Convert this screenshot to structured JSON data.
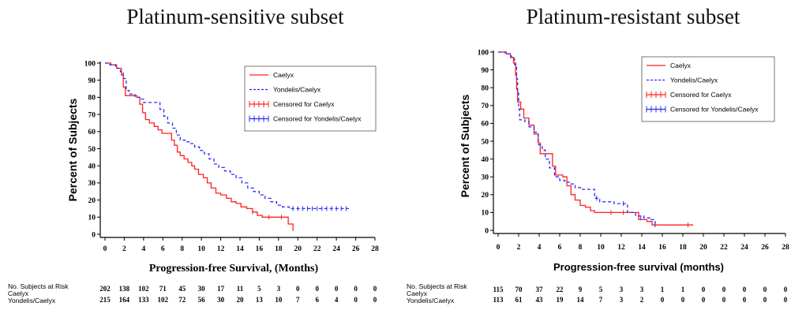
{
  "chart_data": [
    {
      "type": "line",
      "title": "Platinum-sensitive subset",
      "xlabel": "Progression-free Survival, (Months)",
      "ylabel": "Percent of Subjects",
      "xlim": [
        0,
        28
      ],
      "ylim": [
        0,
        100
      ],
      "xticks": [
        0,
        2,
        4,
        6,
        8,
        10,
        12,
        14,
        16,
        18,
        20,
        22,
        24,
        26,
        28
      ],
      "yticks": [
        0,
        10,
        20,
        30,
        40,
        50,
        60,
        70,
        80,
        90,
        100
      ],
      "legend": {
        "position": "top-right",
        "entries": [
          {
            "label": "Caelyx",
            "color": "#ff2020",
            "style": "solid"
          },
          {
            "label": "Yondelis/Caelyx",
            "color": "#2a2aff",
            "style": "dashed"
          },
          {
            "label": "Censored for Caelyx",
            "color": "#ff2020",
            "style": "censor"
          },
          {
            "label": "Censored for Yondelis/Caelyx",
            "color": "#2a2aff",
            "style": "censor"
          }
        ]
      },
      "series": [
        {
          "name": "Caelyx",
          "color": "#ff2020",
          "dash": "",
          "points": [
            [
              0,
              100
            ],
            [
              0.6,
              99
            ],
            [
              1.2,
              97
            ],
            [
              1.7,
              93
            ],
            [
              1.9,
              86
            ],
            [
              2.1,
              81
            ],
            [
              3.3,
              80
            ],
            [
              3.6,
              76
            ],
            [
              3.9,
              71
            ],
            [
              4.2,
              67
            ],
            [
              4.6,
              65
            ],
            [
              5.1,
              63
            ],
            [
              5.5,
              61
            ],
            [
              5.9,
              59
            ],
            [
              6.6,
              59
            ],
            [
              6.9,
              55
            ],
            [
              7.2,
              52
            ],
            [
              7.5,
              48
            ],
            [
              7.8,
              46
            ],
            [
              8.2,
              44
            ],
            [
              8.6,
              42
            ],
            [
              9,
              40
            ],
            [
              9.3,
              38
            ],
            [
              9.7,
              35
            ],
            [
              10.2,
              33
            ],
            [
              10.6,
              30
            ],
            [
              11,
              27
            ],
            [
              11.5,
              24
            ],
            [
              12,
              23
            ],
            [
              12.6,
              21
            ],
            [
              13.1,
              19
            ],
            [
              13.6,
              18
            ],
            [
              14.1,
              16
            ],
            [
              14.7,
              15
            ],
            [
              15.3,
              13
            ],
            [
              15.8,
              11
            ],
            [
              16.3,
              10
            ],
            [
              18.9,
              10
            ],
            [
              19,
              6
            ],
            [
              19.4,
              6
            ],
            [
              19.5,
              2
            ]
          ]
        },
        {
          "name": "Yondelis/Caelyx",
          "color": "#2a2aff",
          "dash": "4,3",
          "points": [
            [
              0,
              100
            ],
            [
              0.5,
              99
            ],
            [
              1.1,
              97
            ],
            [
              1.6,
              95
            ],
            [
              1.9,
              91
            ],
            [
              2.2,
              84
            ],
            [
              2.5,
              82
            ],
            [
              3.1,
              80
            ],
            [
              3.6,
              79
            ],
            [
              4,
              77
            ],
            [
              5.3,
              77
            ],
            [
              5.7,
              73
            ],
            [
              6.1,
              69
            ],
            [
              6.5,
              65
            ],
            [
              7,
              62
            ],
            [
              7.4,
              58
            ],
            [
              7.8,
              55
            ],
            [
              8.3,
              54
            ],
            [
              8.8,
              53
            ],
            [
              9.3,
              51
            ],
            [
              9.8,
              49
            ],
            [
              10.3,
              47
            ],
            [
              10.8,
              44
            ],
            [
              11.3,
              41
            ],
            [
              11.8,
              39
            ],
            [
              12.4,
              37
            ],
            [
              13,
              35
            ],
            [
              13.6,
              33
            ],
            [
              14.2,
              30
            ],
            [
              14.8,
              27
            ],
            [
              15.4,
              25
            ],
            [
              16,
              23
            ],
            [
              16.6,
              21
            ],
            [
              17.2,
              19
            ],
            [
              17.8,
              17
            ],
            [
              18.4,
              16
            ],
            [
              19.1,
              15
            ],
            [
              25.3,
              15
            ]
          ]
        }
      ],
      "censored": [
        {
          "series": "Caelyx",
          "color": "#ff2020",
          "points": [
            [
              15.3,
              13
            ],
            [
              17,
              10
            ],
            [
              18.3,
              10
            ]
          ]
        },
        {
          "series": "Yondelis/Caelyx",
          "color": "#2a2aff",
          "points": [
            [
              19.5,
              15
            ],
            [
              20,
              15
            ],
            [
              20.5,
              15
            ],
            [
              21,
              15
            ],
            [
              21.5,
              15
            ],
            [
              22,
              15
            ],
            [
              22.5,
              15
            ],
            [
              23,
              15
            ],
            [
              23.5,
              15
            ],
            [
              24,
              15
            ],
            [
              24.5,
              15
            ],
            [
              25,
              15
            ]
          ]
        }
      ],
      "risk_table": {
        "header": "No. Subjects at Risk",
        "rows": [
          {
            "label": "Caelyx",
            "values": [
              "202",
              "138",
              "102",
              "71",
              "45",
              "30",
              "17",
              "11",
              "5",
              "3",
              "0",
              "0",
              "0",
              "0",
              "0"
            ]
          },
          {
            "label": "Yondelis/Caelyx",
            "values": [
              "215",
              "164",
              "133",
              "102",
              "72",
              "56",
              "30",
              "20",
              "13",
              "10",
              "7",
              "6",
              "4",
              "0",
              "0"
            ]
          }
        ]
      }
    },
    {
      "type": "line",
      "title": "Platinum-resistant subset",
      "xlabel": "Progression-free survival (months)",
      "ylabel": "Percent of Subjects",
      "xlim": [
        0,
        28
      ],
      "ylim": [
        0,
        100
      ],
      "xticks": [
        0,
        2,
        4,
        6,
        8,
        10,
        12,
        14,
        16,
        18,
        20,
        22,
        24,
        26,
        28
      ],
      "yticks": [
        0,
        10,
        20,
        30,
        40,
        50,
        60,
        70,
        80,
        90,
        100
      ],
      "legend": {
        "position": "top-right",
        "entries": [
          {
            "label": "Caelyx",
            "color": "#ff2020",
            "style": "solid"
          },
          {
            "label": "Yondelis/Caelyx",
            "color": "#2a2aff",
            "style": "dashed"
          },
          {
            "label": "Censored for Caelyx",
            "color": "#ff2020",
            "style": "censor"
          },
          {
            "label": "Censored for Yondelis/Caelyx",
            "color": "#2a2aff",
            "style": "censor"
          }
        ]
      },
      "series": [
        {
          "name": "Caelyx",
          "color": "#ff2020",
          "dash": "",
          "points": [
            [
              0,
              100
            ],
            [
              0.8,
              99
            ],
            [
              1.2,
              97
            ],
            [
              1.5,
              94
            ],
            [
              1.7,
              87
            ],
            [
              1.8,
              79
            ],
            [
              1.9,
              72
            ],
            [
              2.2,
              68
            ],
            [
              2.5,
              63
            ],
            [
              3,
              59
            ],
            [
              3.5,
              54
            ],
            [
              3.9,
              49
            ],
            [
              4.1,
              43
            ],
            [
              4.9,
              43
            ],
            [
              5.3,
              36
            ],
            [
              5.6,
              31
            ],
            [
              6.3,
              30
            ],
            [
              6.7,
              25
            ],
            [
              7.1,
              20
            ],
            [
              7.5,
              17
            ],
            [
              8,
              14
            ],
            [
              8.5,
              13
            ],
            [
              9,
              11
            ],
            [
              9.4,
              10
            ],
            [
              13.6,
              10
            ],
            [
              13.7,
              6
            ],
            [
              14.5,
              5
            ],
            [
              15,
              3
            ],
            [
              19,
              3
            ]
          ]
        },
        {
          "name": "Yondelis/Caelyx",
          "color": "#2a2aff",
          "dash": "4,3",
          "points": [
            [
              0,
              100
            ],
            [
              0.7,
              99
            ],
            [
              1.3,
              97
            ],
            [
              1.6,
              93
            ],
            [
              1.8,
              85
            ],
            [
              1.9,
              77
            ],
            [
              2,
              68
            ],
            [
              2.1,
              62
            ],
            [
              2.6,
              61
            ],
            [
              3,
              58
            ],
            [
              3.5,
              55
            ],
            [
              3.9,
              48
            ],
            [
              4.3,
              45
            ],
            [
              4.6,
              40
            ],
            [
              5,
              35
            ],
            [
              5.5,
              30
            ],
            [
              6,
              28
            ],
            [
              6.5,
              27
            ],
            [
              7.1,
              26
            ],
            [
              7.5,
              24
            ],
            [
              8.1,
              23
            ],
            [
              9,
              23
            ],
            [
              9.4,
              18
            ],
            [
              9.9,
              16
            ],
            [
              11.3,
              15
            ],
            [
              12.2,
              15
            ],
            [
              12.6,
              10
            ],
            [
              13.4,
              8
            ],
            [
              14.2,
              7
            ],
            [
              14.9,
              6
            ],
            [
              15.3,
              3
            ]
          ]
        }
      ],
      "censored": [
        {
          "series": "Caelyx",
          "color": "#ff2020",
          "points": [
            [
              11,
              10
            ],
            [
              12.2,
              10
            ],
            [
              18.5,
              3
            ]
          ]
        },
        {
          "series": "Yondelis/Caelyx",
          "color": "#2a2aff",
          "points": [
            [
              9.6,
              18
            ],
            [
              12.2,
              15
            ],
            [
              13.9,
              7
            ],
            [
              15.3,
              3
            ]
          ]
        }
      ],
      "risk_table": {
        "header": "No. Subjects at Risk",
        "rows": [
          {
            "label": "Caelyx",
            "values": [
              "115",
              "70",
              "37",
              "22",
              "9",
              "5",
              "3",
              "3",
              "1",
              "1",
              "0",
              "0",
              "0",
              "0",
              "0"
            ]
          },
          {
            "label": "Yondelis/Caelyx",
            "values": [
              "113",
              "61",
              "43",
              "19",
              "14",
              "7",
              "3",
              "2",
              "0",
              "0",
              "0",
              "0",
              "0",
              "0",
              "0"
            ]
          }
        ]
      }
    }
  ]
}
